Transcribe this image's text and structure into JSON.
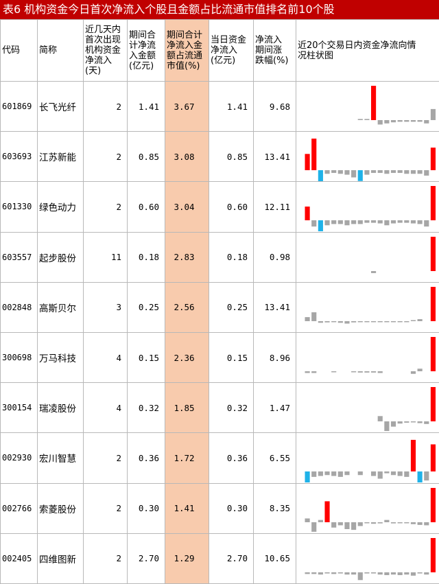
{
  "title": "表6  机构资金今日首次净流入个股且金额占比流通市值排名前10个股",
  "headers": {
    "code": "代码",
    "name": "简称",
    "days": [
      "近几天内",
      "首次出现",
      "机构资金",
      "净流入",
      "(天)"
    ],
    "period_amount": [
      "期间合",
      "计净流",
      "入金额",
      "(亿元)"
    ],
    "period_ratio": [
      "期间合计",
      "净流入金",
      "额占流通",
      "市值(%)"
    ],
    "today": [
      "当日资金",
      "净流入",
      "(亿元)"
    ],
    "change": [
      "净流入",
      "期间涨",
      "跌幅(%)"
    ],
    "chart": [
      "近20个交易日内资金净流向情",
      "况柱状图"
    ]
  },
  "colors": {
    "positive": "#ff0000",
    "negative": "#1fb2e8",
    "neutral": "#a6a6a6",
    "highlight": "#f8cbad"
  },
  "rows": [
    {
      "code": "601869",
      "name": "长飞光纤",
      "days": "2",
      "period_amount": "1.41",
      "period_ratio": "3.67",
      "today": "1.41",
      "change": "9.68",
      "bars": [
        0,
        0,
        0,
        0,
        0,
        0,
        0,
        0,
        0.02,
        0.02,
        0.62,
        -0.08,
        -0.06,
        -0.04,
        -0.03,
        -0.03,
        -0.03,
        -0.03,
        -0.06,
        0.2
      ]
    },
    {
      "code": "603693",
      "name": "江苏新能",
      "days": "2",
      "period_amount": "0.85",
      "period_ratio": "3.08",
      "today": "0.85",
      "change": "13.41",
      "bars": [
        0.18,
        0.35,
        -0.38,
        -0.04,
        -0.03,
        -0.04,
        -0.05,
        -0.08,
        -0.12,
        -0.05,
        -0.03,
        -0.03,
        -0.04,
        -0.03,
        -0.03,
        -0.04,
        -0.04,
        -0.04,
        -0.06,
        0.25
      ]
    },
    {
      "code": "601330",
      "name": "绿色动力",
      "days": "2",
      "period_amount": "0.60",
      "period_ratio": "3.04",
      "today": "0.60",
      "change": "12.11",
      "bars": [
        0.22,
        -0.1,
        -0.2,
        -0.08,
        -0.06,
        -0.06,
        -0.08,
        -0.06,
        -0.06,
        -0.04,
        -0.04,
        -0.05,
        -0.08,
        -0.05,
        -0.04,
        -0.04,
        -0.05,
        -0.06,
        -0.1,
        0.55
      ]
    },
    {
      "code": "603557",
      "name": "起步股份",
      "days": "11",
      "period_amount": "0.18",
      "period_ratio": "2.83",
      "today": "0.18",
      "change": "0.98",
      "bars": [
        0,
        0,
        0,
        0,
        0,
        0,
        0,
        0,
        0,
        0,
        -0.05,
        0,
        0,
        0,
        0,
        0,
        0,
        0,
        0,
        0.85
      ]
    },
    {
      "code": "002848",
      "name": "高斯贝尔",
      "days": "3",
      "period_amount": "0.25",
      "period_ratio": "2.56",
      "today": "0.25",
      "change": "13.41",
      "bars": [
        0.1,
        0.22,
        -0.04,
        -0.03,
        -0.02,
        -0.04,
        -0.06,
        -0.03,
        -0.02,
        -0.02,
        -0.02,
        -0.02,
        -0.02,
        -0.02,
        -0.02,
        -0.02,
        0.02,
        0.05,
        0,
        0.85
      ]
    },
    {
      "code": "300698",
      "name": "万马科技",
      "days": "4",
      "period_amount": "0.15",
      "period_ratio": "2.36",
      "today": "0.15",
      "change": "8.96",
      "bars": [
        -0.04,
        -0.04,
        0,
        0,
        -0.02,
        0,
        0,
        -0.02,
        -0.03,
        -0.03,
        -0.03,
        -0.04,
        0,
        0,
        0,
        0,
        -0.06,
        0.06,
        0,
        0.8
      ]
    },
    {
      "code": "300154",
      "name": "瑞凌股份",
      "days": "4",
      "period_amount": "0.32",
      "period_ratio": "1.85",
      "today": "0.32",
      "change": "1.47",
      "bars": [
        0,
        0,
        0,
        0,
        0,
        0,
        0,
        0,
        0,
        0,
        0,
        0.12,
        -0.22,
        -0.12,
        -0.05,
        -0.03,
        -0.02,
        -0.04,
        -0.06,
        0.78
      ]
    },
    {
      "code": "002930",
      "name": "宏川智慧",
      "days": "2",
      "period_amount": "0.36",
      "period_ratio": "1.72",
      "today": "0.36",
      "change": "6.55",
      "bars": [
        -0.15,
        -0.06,
        -0.05,
        -0.04,
        -0.05,
        -0.06,
        -0.04,
        0,
        -0.04,
        0,
        -0.05,
        -0.08,
        -0.02,
        -0.04,
        -0.05,
        -0.06,
        0.35,
        -0.38,
        -0.1,
        0.3
      ]
    },
    {
      "code": "002766",
      "name": "索菱股份",
      "days": "2",
      "period_amount": "0.30",
      "period_ratio": "1.41",
      "today": "0.30",
      "change": "8.35",
      "bars": [
        0.1,
        -0.25,
        0.06,
        0.55,
        -0.14,
        -0.08,
        -0.18,
        -0.2,
        -0.1,
        -0.02,
        -0.04,
        -0.03,
        0.06,
        -0.03,
        -0.02,
        -0.02,
        -0.05,
        -0.07,
        -0.08,
        0.9
      ]
    },
    {
      "code": "002405",
      "name": "四维图新",
      "days": "2",
      "period_amount": "2.70",
      "period_ratio": "1.29",
      "today": "2.70",
      "change": "10.65",
      "bars": [
        -0.03,
        -0.03,
        -0.04,
        -0.02,
        -0.03,
        -0.02,
        -0.04,
        -0.04,
        -0.14,
        -0.02,
        -0.02,
        -0.04,
        -0.05,
        -0.04,
        -0.05,
        -0.04,
        -0.06,
        -0.02,
        -0.04,
        0.62
      ]
    }
  ]
}
